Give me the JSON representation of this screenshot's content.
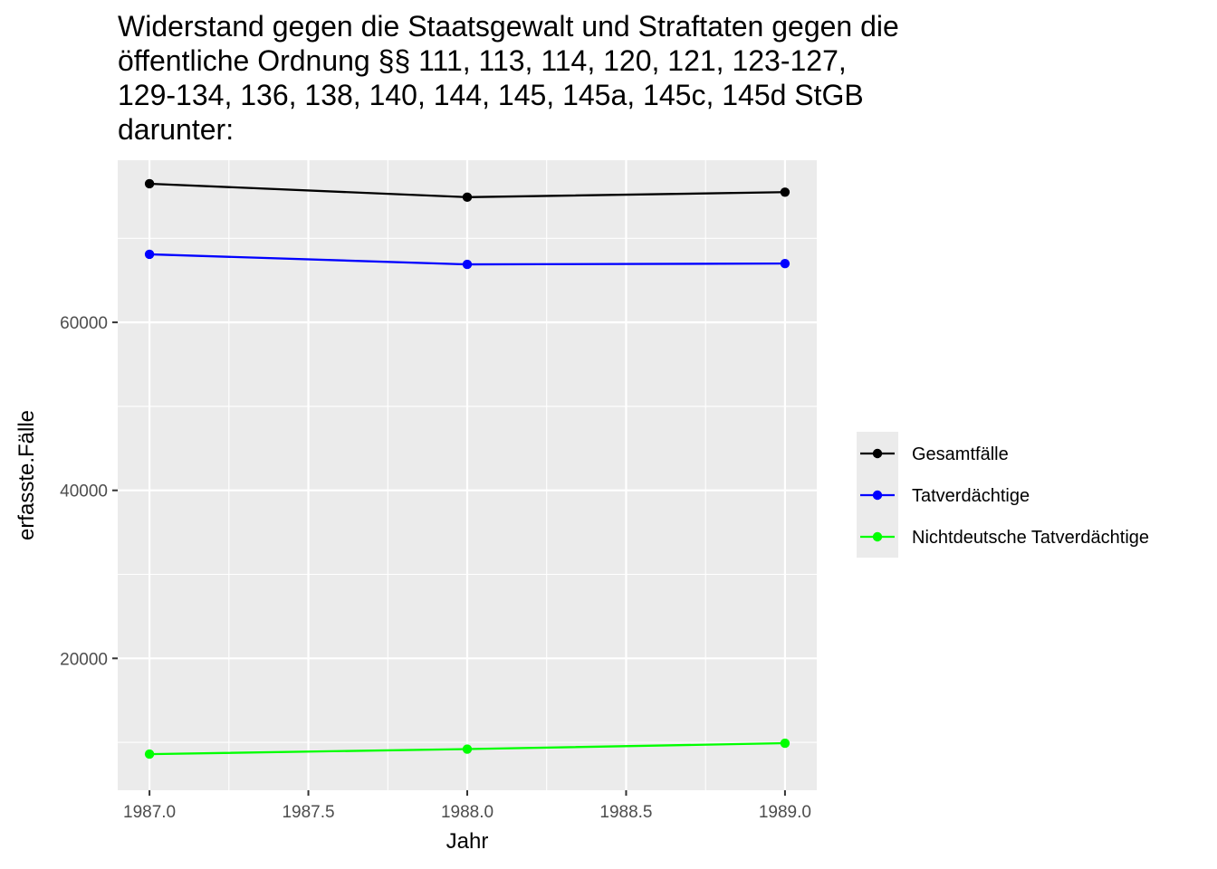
{
  "chart_data": {
    "type": "line",
    "title": [
      "Widerstand gegen die Staatsgewalt und Straftaten gegen die",
      "öffentliche Ordnung §§ 111, 113, 114, 120, 121, 123-127,",
      "129-134, 136, 138, 140, 144, 145, 145a, 145c, 145d StGB",
      "darunter:"
    ],
    "xlabel": "Jahr",
    "ylabel": "erfasste.Fälle",
    "x": [
      1987,
      1988,
      1989
    ],
    "xlim": [
      1986.9,
      1989.1
    ],
    "ylim": [
      4300,
      79300
    ],
    "x_ticks": [
      1987.0,
      1987.5,
      1988.0,
      1988.5,
      1989.0
    ],
    "x_tick_labels": [
      "1987.0",
      "1987.5",
      "1988.0",
      "1988.5",
      "1989.0"
    ],
    "y_ticks": [
      20000,
      40000,
      60000
    ],
    "y_tick_labels": [
      "20000",
      "40000",
      "60000"
    ],
    "grid": true,
    "legend_position": "right",
    "series": [
      {
        "name": "Gesamtfälle",
        "color": "#000000",
        "values": [
          76500,
          74900,
          75500
        ]
      },
      {
        "name": "Tatverdächtige",
        "color": "#0000ff",
        "values": [
          68100,
          66900,
          67000
        ]
      },
      {
        "name": "Nichtdeutsche Tatverdächtige",
        "color": "#00ff00",
        "values": [
          8600,
          9200,
          9900
        ]
      }
    ]
  }
}
